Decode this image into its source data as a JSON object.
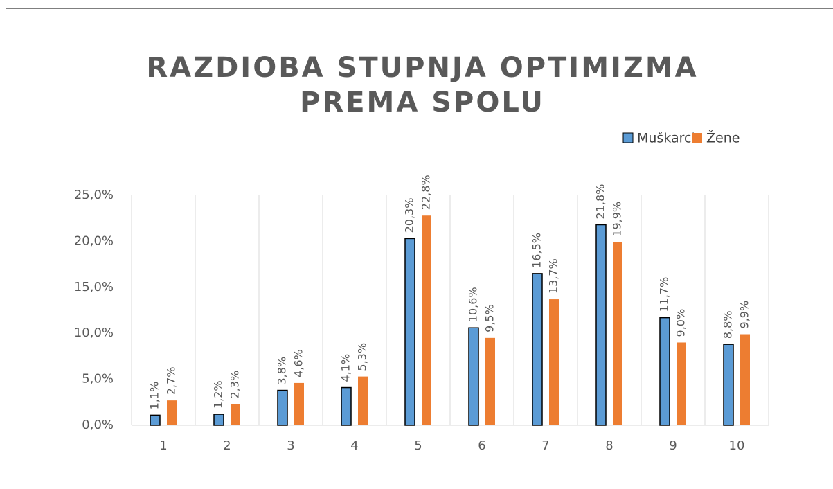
{
  "chart_data": {
    "type": "bar",
    "title": [
      "RAZDIOBA STUPNJA OPTIMIZMA",
      "PREMA SPOLU"
    ],
    "categories": [
      "1",
      "2",
      "3",
      "4",
      "5",
      "6",
      "7",
      "8",
      "9",
      "10"
    ],
    "series": [
      {
        "name": "Muškarci",
        "color": "#5b9bd5",
        "values": [
          1.1,
          1.2,
          3.8,
          4.1,
          20.3,
          10.6,
          16.5,
          21.8,
          11.7,
          8.8
        ],
        "value_labels": [
          "1,1%",
          "1,2%",
          "3,8%",
          "4,1%",
          "20,3%",
          "10,6%",
          "16,5%",
          "21,8%",
          "11,7%",
          "8,8%"
        ]
      },
      {
        "name": "Žene",
        "color": "#ed7d31",
        "values": [
          2.7,
          2.3,
          4.6,
          5.3,
          22.8,
          9.5,
          13.7,
          19.9,
          9.0,
          9.9
        ],
        "value_labels": [
          "2,7%",
          "2,3%",
          "4,6%",
          "5,3%",
          "22,8%",
          "9,5%",
          "13,7%",
          "19,9%",
          "9,0%",
          "9,9%"
        ]
      }
    ],
    "ylim": [
      0,
      25
    ],
    "yticks": [
      {
        "value": 0,
        "label": "0,0%"
      },
      {
        "value": 5,
        "label": "5,0%"
      },
      {
        "value": 10,
        "label": "10,0%"
      },
      {
        "value": 15,
        "label": "15,0%"
      },
      {
        "value": 20,
        "label": "20,0%"
      },
      {
        "value": 25,
        "label": "25,0%"
      }
    ],
    "legend": "top-right"
  }
}
